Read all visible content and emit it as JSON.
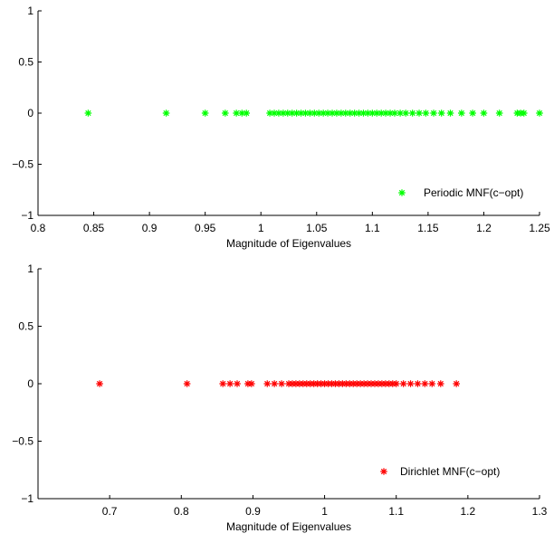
{
  "chart_data": [
    {
      "type": "scatter",
      "xlabel": "Magnitude of Eigenvalues",
      "ylabel": "",
      "xlim": [
        0.8,
        1.25
      ],
      "ylim": [
        -1,
        1
      ],
      "xticks": [
        0.8,
        0.85,
        0.9,
        0.95,
        1,
        1.05,
        1.1,
        1.15,
        1.2,
        1.25
      ],
      "xtick_labels": [
        "0.8",
        "0.85",
        "0.9",
        "0.95",
        "1",
        "1.05",
        "1.1",
        "1.15",
        "1.2",
        "1.25"
      ],
      "yticks": [
        -1,
        -0.5,
        0,
        0.5,
        1
      ],
      "ytick_labels": [
        "−1",
        "−0.5",
        "0",
        "0.5",
        "1"
      ],
      "legend_position": "bottom-right",
      "series": [
        {
          "name": "Periodic MNF(c−opt)",
          "color": "#00ff00",
          "marker": "*",
          "points": [
            [
              0.845,
              0
            ],
            [
              0.915,
              0
            ],
            [
              0.95,
              0
            ],
            [
              0.968,
              0
            ],
            [
              0.978,
              0
            ],
            [
              0.983,
              0
            ],
            [
              0.987,
              0
            ],
            [
              1.008,
              0
            ],
            [
              1.012,
              0
            ],
            [
              1.016,
              0
            ],
            [
              1.02,
              0
            ],
            [
              1.024,
              0
            ],
            [
              1.028,
              0
            ],
            [
              1.032,
              0
            ],
            [
              1.036,
              0
            ],
            [
              1.04,
              0
            ],
            [
              1.044,
              0
            ],
            [
              1.048,
              0
            ],
            [
              1.052,
              0
            ],
            [
              1.056,
              0
            ],
            [
              1.06,
              0
            ],
            [
              1.064,
              0
            ],
            [
              1.068,
              0
            ],
            [
              1.072,
              0
            ],
            [
              1.076,
              0
            ],
            [
              1.08,
              0
            ],
            [
              1.084,
              0
            ],
            [
              1.088,
              0
            ],
            [
              1.092,
              0
            ],
            [
              1.096,
              0
            ],
            [
              1.1,
              0
            ],
            [
              1.104,
              0
            ],
            [
              1.108,
              0
            ],
            [
              1.112,
              0
            ],
            [
              1.116,
              0
            ],
            [
              1.12,
              0
            ],
            [
              1.125,
              0
            ],
            [
              1.13,
              0
            ],
            [
              1.136,
              0
            ],
            [
              1.142,
              0
            ],
            [
              1.148,
              0
            ],
            [
              1.155,
              0
            ],
            [
              1.162,
              0
            ],
            [
              1.17,
              0
            ],
            [
              1.18,
              0
            ],
            [
              1.19,
              0
            ],
            [
              1.2,
              0
            ],
            [
              1.214,
              0
            ],
            [
              1.23,
              0
            ],
            [
              1.233,
              0
            ],
            [
              1.236,
              0
            ],
            [
              1.25,
              0
            ]
          ]
        }
      ]
    },
    {
      "type": "scatter",
      "xlabel": "Magnitude of Eigenvalues",
      "ylabel": "",
      "xlim": [
        0.6,
        1.3
      ],
      "ylim": [
        -1,
        1
      ],
      "xticks": [
        0.7,
        0.8,
        0.9,
        1,
        1.1,
        1.2,
        1.3
      ],
      "xtick_labels": [
        "0.7",
        "0.8",
        "0.9",
        "1",
        "1.1",
        "1.2",
        "1.3"
      ],
      "yticks": [
        -1,
        -0.5,
        0,
        0.5,
        1
      ],
      "ytick_labels": [
        "−1",
        "−0.5",
        "0",
        "0.5",
        "1"
      ],
      "legend_position": "bottom-right",
      "series": [
        {
          "name": "Dirichlet MNF(c−opt)",
          "color": "#ff0000",
          "marker": "*",
          "points": [
            [
              0.686,
              0
            ],
            [
              0.808,
              0
            ],
            [
              0.858,
              0
            ],
            [
              0.868,
              0
            ],
            [
              0.878,
              0
            ],
            [
              0.893,
              0
            ],
            [
              0.898,
              0
            ],
            [
              0.92,
              0
            ],
            [
              0.93,
              0
            ],
            [
              0.94,
              0
            ],
            [
              0.95,
              0
            ],
            [
              0.955,
              0
            ],
            [
              0.96,
              0
            ],
            [
              0.965,
              0
            ],
            [
              0.97,
              0
            ],
            [
              0.975,
              0
            ],
            [
              0.98,
              0
            ],
            [
              0.985,
              0
            ],
            [
              0.99,
              0
            ],
            [
              0.995,
              0
            ],
            [
              1,
              0
            ],
            [
              1.005,
              0
            ],
            [
              1.01,
              0
            ],
            [
              1.015,
              0
            ],
            [
              1.02,
              0
            ],
            [
              1.025,
              0
            ],
            [
              1.03,
              0
            ],
            [
              1.035,
              0
            ],
            [
              1.04,
              0
            ],
            [
              1.045,
              0
            ],
            [
              1.05,
              0
            ],
            [
              1.055,
              0
            ],
            [
              1.06,
              0
            ],
            [
              1.065,
              0
            ],
            [
              1.07,
              0
            ],
            [
              1.075,
              0
            ],
            [
              1.08,
              0
            ],
            [
              1.085,
              0
            ],
            [
              1.09,
              0
            ],
            [
              1.095,
              0
            ],
            [
              1.1,
              0
            ],
            [
              1.11,
              0
            ],
            [
              1.12,
              0
            ],
            [
              1.13,
              0
            ],
            [
              1.14,
              0
            ],
            [
              1.15,
              0
            ],
            [
              1.162,
              0
            ],
            [
              1.184,
              0
            ]
          ]
        }
      ]
    }
  ]
}
